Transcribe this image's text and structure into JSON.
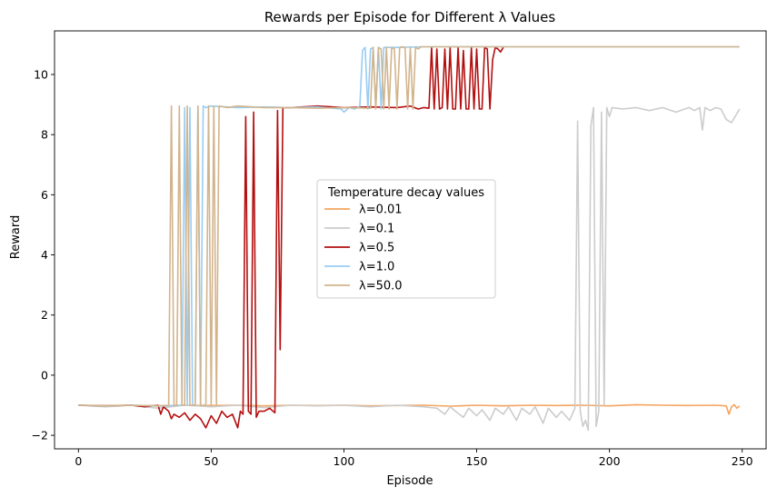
{
  "chart_data": {
    "type": "line",
    "title": "Rewards per Episode for Different λ Values",
    "xlabel": "Episode",
    "ylabel": "Reward",
    "xlim": [
      -9,
      259
    ],
    "ylim": [
      -2.45,
      11.45
    ],
    "xticks": [
      0,
      50,
      100,
      150,
      200,
      250
    ],
    "yticks": [
      -2,
      0,
      2,
      4,
      6,
      8,
      10
    ],
    "grid": false,
    "legend": {
      "title": "Temperature decay values",
      "placement": "center"
    },
    "series": [
      {
        "name": "λ=0.01",
        "color": "#f4a460",
        "points": [
          [
            0,
            -1.0
          ],
          [
            10,
            -1.01
          ],
          [
            20,
            -1.0
          ],
          [
            30,
            -1.02
          ],
          [
            40,
            -1.0
          ],
          [
            50,
            -1.01
          ],
          [
            60,
            -1.0
          ],
          [
            70,
            -1.02
          ],
          [
            80,
            -1.0
          ],
          [
            90,
            -1.01
          ],
          [
            100,
            -1.0
          ],
          [
            110,
            -1.02
          ],
          [
            120,
            -1.01
          ],
          [
            130,
            -1.0
          ],
          [
            140,
            -1.03
          ],
          [
            150,
            -1.0
          ],
          [
            160,
            -1.02
          ],
          [
            170,
            -1.0
          ],
          [
            180,
            -1.01
          ],
          [
            190,
            -1.0
          ],
          [
            200,
            -1.02
          ],
          [
            210,
            -0.98
          ],
          [
            220,
            -1.0
          ],
          [
            230,
            -1.01
          ],
          [
            240,
            -1.0
          ],
          [
            244,
            -1.02
          ],
          [
            245,
            -1.3
          ],
          [
            246,
            -1.05
          ],
          [
            247,
            -0.98
          ],
          [
            248,
            -1.1
          ],
          [
            249,
            -1.02
          ]
        ]
      },
      {
        "name": "λ=0.1",
        "color": "#cccccc",
        "points": [
          [
            0,
            -1.0
          ],
          [
            10,
            -1.05
          ],
          [
            20,
            -1.0
          ],
          [
            30,
            -1.1
          ],
          [
            40,
            -1.0
          ],
          [
            50,
            -1.05
          ],
          [
            60,
            -1.0
          ],
          [
            70,
            -1.08
          ],
          [
            80,
            -1.0
          ],
          [
            90,
            -1.02
          ],
          [
            100,
            -1.0
          ],
          [
            110,
            -1.05
          ],
          [
            120,
            -1.0
          ],
          [
            130,
            -1.05
          ],
          [
            135,
            -1.1
          ],
          [
            138,
            -1.3
          ],
          [
            140,
            -1.05
          ],
          [
            142,
            -1.2
          ],
          [
            145,
            -1.4
          ],
          [
            147,
            -1.1
          ],
          [
            150,
            -1.35
          ],
          [
            152,
            -1.15
          ],
          [
            155,
            -1.5
          ],
          [
            157,
            -1.1
          ],
          [
            160,
            -1.3
          ],
          [
            162,
            -1.05
          ],
          [
            165,
            -1.5
          ],
          [
            167,
            -1.1
          ],
          [
            170,
            -1.3
          ],
          [
            172,
            -1.05
          ],
          [
            175,
            -1.6
          ],
          [
            177,
            -1.1
          ],
          [
            180,
            -1.4
          ],
          [
            182,
            -1.2
          ],
          [
            185,
            -1.5
          ],
          [
            187,
            -1.1
          ],
          [
            188,
            8.45
          ],
          [
            189,
            -1.2
          ],
          [
            190,
            -1.7
          ],
          [
            191,
            -1.5
          ],
          [
            192,
            -1.83
          ],
          [
            193,
            8.3
          ],
          [
            194,
            8.9
          ],
          [
            195,
            -1.7
          ],
          [
            196,
            -1.2
          ],
          [
            197,
            8.75
          ],
          [
            198,
            -1.0
          ],
          [
            199,
            8.9
          ],
          [
            200,
            8.6
          ],
          [
            201,
            8.9
          ],
          [
            205,
            8.85
          ],
          [
            210,
            8.9
          ],
          [
            215,
            8.8
          ],
          [
            220,
            8.9
          ],
          [
            225,
            8.75
          ],
          [
            230,
            8.9
          ],
          [
            232,
            8.8
          ],
          [
            234,
            8.9
          ],
          [
            235,
            8.15
          ],
          [
            236,
            8.9
          ],
          [
            238,
            8.8
          ],
          [
            240,
            8.9
          ],
          [
            242,
            8.85
          ],
          [
            244,
            8.5
          ],
          [
            246,
            8.4
          ],
          [
            248,
            8.7
          ],
          [
            249,
            8.85
          ]
        ]
      },
      {
        "name": "λ=0.5",
        "color": "#b30f0f",
        "points": [
          [
            0,
            -1.0
          ],
          [
            10,
            -1.02
          ],
          [
            20,
            -1.0
          ],
          [
            25,
            -1.05
          ],
          [
            30,
            -1.0
          ],
          [
            31,
            -1.3
          ],
          [
            32,
            -1.05
          ],
          [
            34,
            -1.2
          ],
          [
            35,
            -1.45
          ],
          [
            36,
            -1.3
          ],
          [
            38,
            -1.4
          ],
          [
            40,
            -1.25
          ],
          [
            42,
            -1.5
          ],
          [
            44,
            -1.3
          ],
          [
            46,
            -1.45
          ],
          [
            48,
            -1.75
          ],
          [
            50,
            -1.35
          ],
          [
            52,
            -1.6
          ],
          [
            54,
            -1.2
          ],
          [
            56,
            -1.4
          ],
          [
            58,
            -1.3
          ],
          [
            60,
            -1.75
          ],
          [
            61,
            -1.2
          ],
          [
            62,
            -1.3
          ],
          [
            63,
            8.6
          ],
          [
            64,
            -1.2
          ],
          [
            65,
            -1.3
          ],
          [
            66,
            8.75
          ],
          [
            67,
            -1.4
          ],
          [
            68,
            -1.2
          ],
          [
            70,
            -1.2
          ],
          [
            72,
            -1.1
          ],
          [
            74,
            -1.25
          ],
          [
            75,
            8.8
          ],
          [
            76,
            0.85
          ],
          [
            77,
            8.9
          ],
          [
            80,
            8.9
          ],
          [
            90,
            8.95
          ],
          [
            100,
            8.9
          ],
          [
            110,
            8.92
          ],
          [
            120,
            8.9
          ],
          [
            125,
            8.95
          ],
          [
            128,
            8.85
          ],
          [
            130,
            8.9
          ],
          [
            132,
            8.88
          ],
          [
            133,
            10.9
          ],
          [
            134,
            8.85
          ],
          [
            135,
            10.85
          ],
          [
            136,
            8.85
          ],
          [
            137,
            8.9
          ],
          [
            138,
            10.85
          ],
          [
            139,
            8.85
          ],
          [
            140,
            10.9
          ],
          [
            141,
            8.85
          ],
          [
            142,
            8.85
          ],
          [
            143,
            10.9
          ],
          [
            144,
            8.85
          ],
          [
            145,
            10.8
          ],
          [
            146,
            8.85
          ],
          [
            147,
            8.85
          ],
          [
            148,
            10.9
          ],
          [
            149,
            8.85
          ],
          [
            150,
            10.85
          ],
          [
            151,
            8.85
          ],
          [
            152,
            8.85
          ],
          [
            153,
            10.9
          ],
          [
            154,
            10.85
          ],
          [
            155,
            8.85
          ],
          [
            156,
            10.5
          ],
          [
            157,
            10.9
          ],
          [
            158,
            10.85
          ],
          [
            159,
            10.75
          ],
          [
            160,
            10.9
          ]
        ]
      },
      {
        "name": "λ=1.0",
        "color": "#99ccf2",
        "points": [
          [
            0,
            -1.0
          ],
          [
            10,
            -1.02
          ],
          [
            20,
            -1.0
          ],
          [
            30,
            -1.03
          ],
          [
            39,
            -1.0
          ],
          [
            40,
            8.9
          ],
          [
            41,
            -1.0
          ],
          [
            42,
            8.9
          ],
          [
            43,
            -1.0
          ],
          [
            44,
            -1.0
          ],
          [
            45,
            8.95
          ],
          [
            46,
            -1.0
          ],
          [
            47,
            8.95
          ],
          [
            48,
            8.9
          ],
          [
            50,
            8.95
          ],
          [
            60,
            8.9
          ],
          [
            70,
            8.92
          ],
          [
            80,
            8.9
          ],
          [
            90,
            8.92
          ],
          [
            99,
            8.85
          ],
          [
            100,
            8.75
          ],
          [
            102,
            8.9
          ],
          [
            104,
            8.85
          ],
          [
            106,
            8.95
          ],
          [
            107,
            10.8
          ],
          [
            108,
            10.9
          ],
          [
            109,
            8.85
          ],
          [
            110,
            10.85
          ],
          [
            111,
            10.9
          ],
          [
            112,
            8.9
          ],
          [
            113,
            10.9
          ],
          [
            114,
            8.85
          ],
          [
            115,
            10.9
          ],
          [
            120,
            10.9
          ],
          [
            130,
            10.92
          ],
          [
            150,
            10.92
          ],
          [
            200,
            10.92
          ],
          [
            249,
            10.92
          ]
        ]
      },
      {
        "name": "λ=50.0",
        "color": "#d2b48c",
        "points": [
          [
            0,
            -1.0
          ],
          [
            10,
            -1.02
          ],
          [
            20,
            -1.0
          ],
          [
            30,
            -1.02
          ],
          [
            34,
            -1.0
          ],
          [
            35,
            8.95
          ],
          [
            36,
            -1.0
          ],
          [
            37,
            -1.0
          ],
          [
            38,
            8.95
          ],
          [
            39,
            -1.0
          ],
          [
            40,
            -1.0
          ],
          [
            41,
            8.95
          ],
          [
            42,
            -1.0
          ],
          [
            44,
            -1.0
          ],
          [
            45,
            8.95
          ],
          [
            46,
            -1.0
          ],
          [
            48,
            -1.0
          ],
          [
            49,
            8.95
          ],
          [
            50,
            -1.0
          ],
          [
            51,
            8.95
          ],
          [
            52,
            -1.0
          ],
          [
            53,
            8.95
          ],
          [
            56,
            8.9
          ],
          [
            60,
            8.95
          ],
          [
            70,
            8.9
          ],
          [
            80,
            8.9
          ],
          [
            90,
            8.88
          ],
          [
            100,
            8.9
          ],
          [
            110,
            8.88
          ],
          [
            111,
            10.9
          ],
          [
            112,
            8.85
          ],
          [
            113,
            10.9
          ],
          [
            114,
            10.85
          ],
          [
            115,
            8.85
          ],
          [
            116,
            10.9
          ],
          [
            117,
            8.85
          ],
          [
            118,
            10.9
          ],
          [
            119,
            10.85
          ],
          [
            120,
            8.85
          ],
          [
            121,
            10.9
          ],
          [
            122,
            10.92
          ],
          [
            123,
            10.9
          ],
          [
            124,
            8.85
          ],
          [
            125,
            10.9
          ],
          [
            126,
            8.85
          ],
          [
            127,
            10.9
          ],
          [
            128,
            10.85
          ],
          [
            129,
            10.92
          ],
          [
            130,
            10.92
          ],
          [
            150,
            10.92
          ],
          [
            200,
            10.92
          ],
          [
            249,
            10.92
          ]
        ]
      }
    ]
  }
}
